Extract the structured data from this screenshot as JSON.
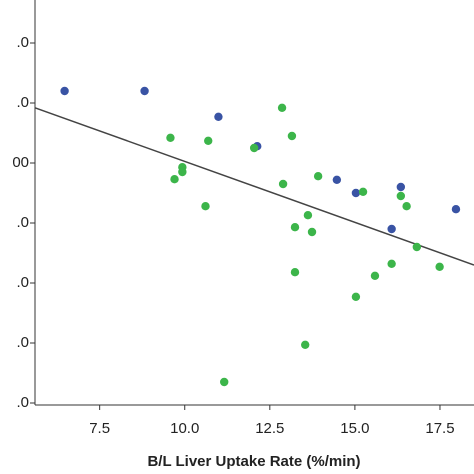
{
  "chart_data": {
    "type": "scatter",
    "x_label": "B/L Liver Uptake Rate (%/min)",
    "xlim": [
      5.6,
      18.5
    ],
    "xticks": [
      7.5,
      {
        "value": 10,
        "label": "10.0"
      },
      12.5,
      {
        "value": 15,
        "label": "15.0"
      },
      17.5
    ],
    "ylim": [
      0,
      6.75
    ],
    "yticks": [
      {
        "value": 0,
        "label": ".0"
      },
      {
        "value": 1,
        "label": ".0"
      },
      {
        "value": 2,
        "label": ".0"
      },
      {
        "value": 3,
        "label": ".0"
      },
      {
        "value": 4,
        "label": "00"
      },
      {
        "value": 5,
        "label": ".0"
      },
      {
        "value": 6,
        "label": ".0"
      }
    ],
    "series": [
      {
        "color": "#3953a4",
        "x": [
          6.47,
          8.82,
          10.99,
          12.13,
          14.47,
          15.03,
          16.35,
          16.08,
          17.97
        ],
        "values": [
          5.2,
          5.2,
          4.77,
          4.28,
          3.72,
          3.5,
          3.6,
          2.9,
          3.23
        ]
      },
      {
        "color": "#3cb54a",
        "x": [
          12.86,
          9.58,
          13.15,
          10.69,
          12.04,
          9.7,
          9.93,
          9.93,
          13.92,
          12.89,
          15.24,
          16.35,
          16.52,
          10.61,
          13.62,
          13.24,
          13.74,
          16.82,
          17.49,
          13.24,
          16.08,
          15.59,
          15.03,
          13.54,
          11.16
        ],
        "values": [
          4.92,
          4.42,
          4.45,
          4.37,
          4.25,
          3.73,
          3.93,
          3.85,
          3.78,
          3.65,
          3.52,
          3.45,
          3.28,
          3.28,
          3.13,
          2.93,
          2.85,
          2.6,
          2.27,
          2.18,
          2.32,
          2.12,
          1.77,
          0.97,
          0.35
        ]
      }
    ],
    "trend_line": {
      "color": "#444444",
      "x": [
        5.6,
        18.5
      ],
      "values": [
        4.92,
        2.3
      ]
    }
  }
}
